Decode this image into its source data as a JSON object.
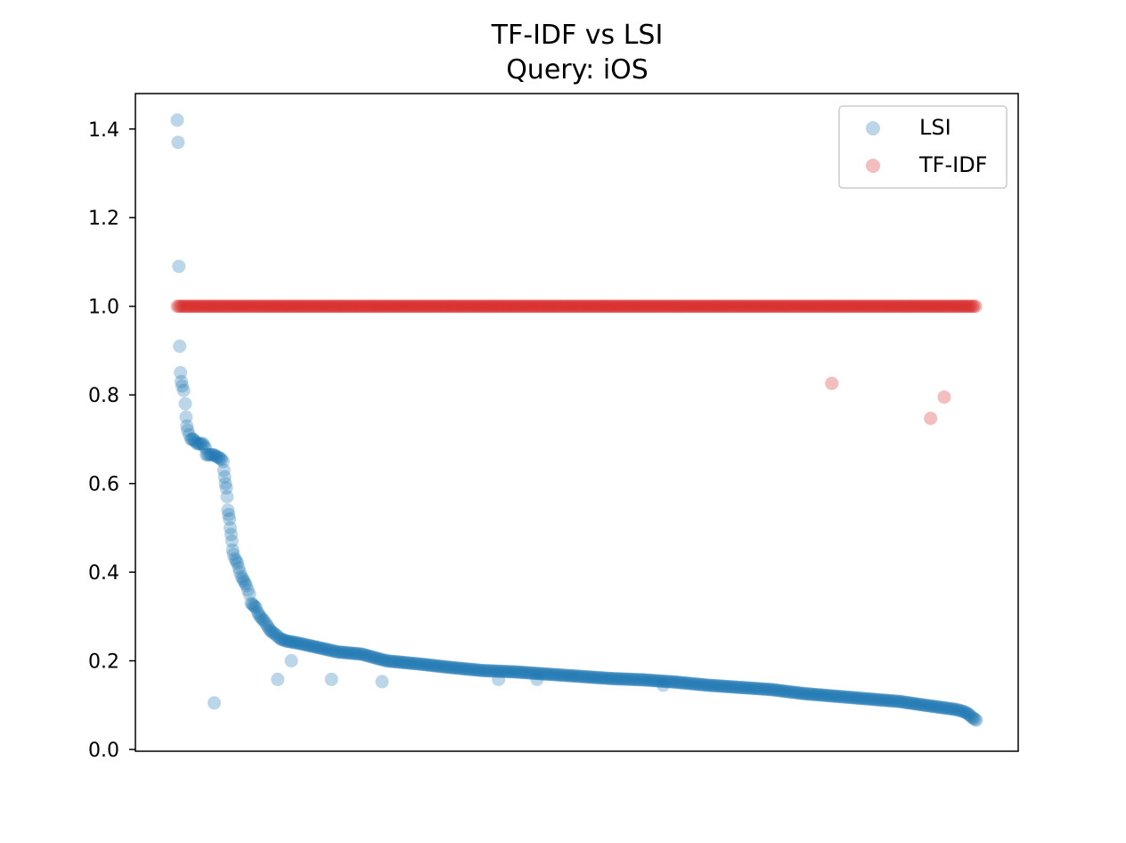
{
  "chart_data": {
    "type": "scatter",
    "title_line1": "TF-IDF vs LSI",
    "title_line2": "Query: iOS",
    "xlabel": "",
    "ylabel": "",
    "x_tick_labels": false,
    "ylim": [
      0.0,
      1.48
    ],
    "y_ticks": [
      0.0,
      0.2,
      0.4,
      0.6,
      0.8,
      1.0,
      1.2,
      1.4
    ],
    "y_tick_labels": [
      "0.0",
      "0.2",
      "0.4",
      "0.6",
      "0.8",
      "1.0",
      "1.2",
      "1.4"
    ],
    "legend": {
      "position": "top-right",
      "entries": [
        "LSI",
        "TF-IDF"
      ]
    },
    "series": [
      {
        "name": "LSI",
        "color": "#1f77b4",
        "alpha": 0.3,
        "main_curve": [
          [
            0,
            1.42
          ],
          [
            1,
            1.37
          ],
          [
            2,
            1.09
          ],
          [
            3,
            0.91
          ],
          [
            4,
            0.85
          ],
          [
            5,
            0.83
          ],
          [
            6,
            0.82
          ],
          [
            8,
            0.81
          ],
          [
            10,
            0.78
          ],
          [
            11,
            0.75
          ],
          [
            12,
            0.73
          ],
          [
            13,
            0.72
          ],
          [
            15,
            0.71
          ],
          [
            17,
            0.7
          ],
          [
            20,
            0.7
          ],
          [
            25,
            0.69
          ],
          [
            32,
            0.69
          ],
          [
            35,
            0.68
          ],
          [
            36,
            0.665
          ],
          [
            45,
            0.665
          ],
          [
            50,
            0.66
          ],
          [
            55,
            0.655
          ],
          [
            57,
            0.65
          ],
          [
            58,
            0.63
          ],
          [
            59,
            0.615
          ],
          [
            60,
            0.6
          ],
          [
            61,
            0.59
          ],
          [
            62,
            0.57
          ],
          [
            63,
            0.54
          ],
          [
            64,
            0.53
          ],
          [
            65,
            0.52
          ],
          [
            66,
            0.5
          ],
          [
            67,
            0.485
          ],
          [
            68,
            0.47
          ],
          [
            69,
            0.45
          ],
          [
            70,
            0.44
          ],
          [
            72,
            0.43
          ],
          [
            75,
            0.42
          ],
          [
            78,
            0.4
          ],
          [
            80,
            0.39
          ],
          [
            83,
            0.38
          ],
          [
            86,
            0.37
          ],
          [
            88,
            0.36
          ],
          [
            90,
            0.35
          ],
          [
            92,
            0.33
          ],
          [
            95,
            0.325
          ],
          [
            98,
            0.32
          ],
          [
            100,
            0.31
          ],
          [
            103,
            0.3
          ],
          [
            108,
            0.29
          ],
          [
            112,
            0.28
          ],
          [
            115,
            0.27
          ],
          [
            118,
            0.265
          ],
          [
            122,
            0.26
          ],
          [
            128,
            0.25
          ],
          [
            135,
            0.245
          ],
          [
            150,
            0.24
          ],
          [
            170,
            0.232
          ],
          [
            200,
            0.22
          ],
          [
            230,
            0.215
          ],
          [
            260,
            0.2
          ],
          [
            300,
            0.193
          ],
          [
            340,
            0.185
          ],
          [
            380,
            0.178
          ],
          [
            420,
            0.175
          ],
          [
            460,
            0.17
          ],
          [
            500,
            0.165
          ],
          [
            540,
            0.16
          ],
          [
            580,
            0.157
          ],
          [
            620,
            0.152
          ],
          [
            660,
            0.145
          ],
          [
            700,
            0.14
          ],
          [
            740,
            0.135
          ],
          [
            780,
            0.126
          ],
          [
            820,
            0.12
          ],
          [
            860,
            0.114
          ],
          [
            900,
            0.108
          ],
          [
            930,
            0.1
          ],
          [
            950,
            0.095
          ],
          [
            970,
            0.09
          ],
          [
            980,
            0.085
          ],
          [
            985,
            0.08
          ],
          [
            990,
            0.072
          ],
          [
            995,
            0.066
          ]
        ],
        "outliers": [
          [
            46,
            0.105
          ],
          [
            125,
            0.158
          ],
          [
            142,
            0.2
          ],
          [
            192,
            0.158
          ],
          [
            255,
            0.153
          ],
          [
            400,
            0.158
          ],
          [
            448,
            0.158
          ],
          [
            605,
            0.145
          ]
        ]
      },
      {
        "name": "TF-IDF",
        "color": "#d62728",
        "alpha": 0.3,
        "line_value": 1.0,
        "line_x_range": [
          0,
          995
        ],
        "outliers": [
          [
            815,
            0.826
          ],
          [
            938,
            0.747
          ],
          [
            955,
            0.795
          ]
        ]
      }
    ]
  }
}
